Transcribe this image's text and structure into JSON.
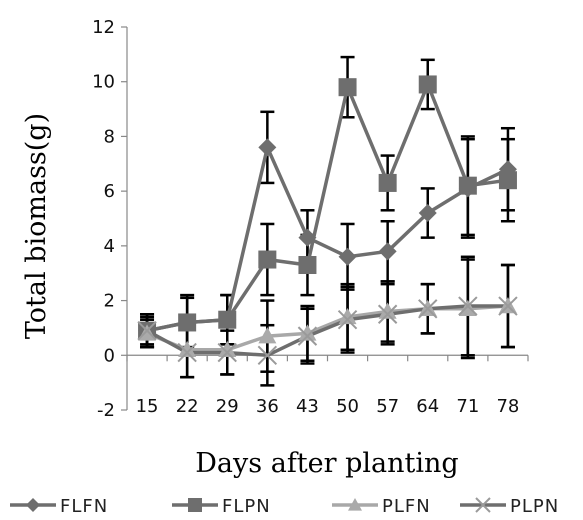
{
  "chart_data": {
    "type": "line",
    "title": "",
    "xlabel": "Days after planting",
    "ylabel": "Total biomass(g)",
    "categories": [
      "15",
      "22",
      "29",
      "36",
      "43",
      "50",
      "57",
      "64",
      "71",
      "78"
    ],
    "ylim": [
      -2,
      12
    ],
    "yticks": [
      -2,
      0,
      2,
      4,
      6,
      8,
      10,
      12
    ],
    "grid": false,
    "legend_position": "bottom",
    "series": [
      {
        "name": "FLFN",
        "marker": "diamond",
        "color": "#6e6e6e",
        "values": [
          0.9,
          1.2,
          1.3,
          7.6,
          4.3,
          3.6,
          3.8,
          5.2,
          6.1,
          6.8
        ],
        "errors": [
          0.6,
          0.9,
          0.9,
          1.3,
          1.0,
          1.2,
          1.1,
          0.9,
          1.8,
          1.5
        ]
      },
      {
        "name": "FLPN",
        "marker": "square",
        "color": "#6e6e6e",
        "values": [
          0.9,
          1.2,
          1.3,
          3.5,
          3.3,
          9.8,
          6.3,
          9.9,
          6.2,
          6.4
        ],
        "errors": [
          0.6,
          1.0,
          0.9,
          1.3,
          1.1,
          1.1,
          1.0,
          0.9,
          1.8,
          1.5
        ]
      },
      {
        "name": "PLFN",
        "marker": "triangle",
        "color": "#a8a8a8",
        "values": [
          0.8,
          0.2,
          0.2,
          0.7,
          0.8,
          1.4,
          1.6,
          1.7,
          1.7,
          1.8
        ],
        "errors": [
          0.5,
          1.0,
          0.9,
          1.3,
          1.0,
          1.2,
          1.1,
          0.9,
          1.8,
          1.5
        ]
      },
      {
        "name": "PLPN",
        "marker": "x",
        "color": "#6e6e6e",
        "values": [
          0.9,
          0.1,
          0.1,
          0.0,
          0.7,
          1.3,
          1.5,
          1.7,
          1.8,
          1.8
        ],
        "errors": [
          0.5,
          0.9,
          0.8,
          1.1,
          1.0,
          1.2,
          1.1,
          0.9,
          1.8,
          1.5
        ]
      }
    ]
  }
}
